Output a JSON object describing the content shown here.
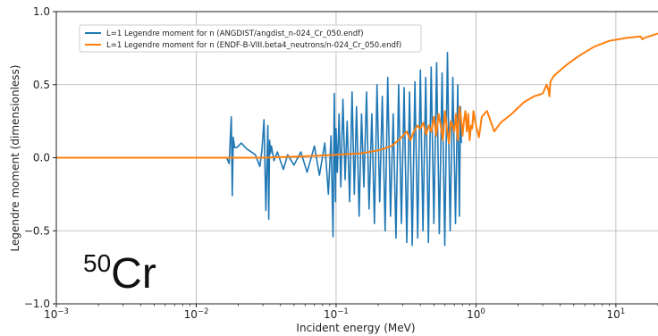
{
  "chart_data": {
    "type": "line",
    "xlabel": "Incident energy (MeV)",
    "ylabel": "Legendre moment (dimensionless)",
    "xscale": "log",
    "xlim": [
      0.001,
      20
    ],
    "ylim": [
      -1.0,
      1.0
    ],
    "grid": true,
    "legend_placement": "upper-left",
    "x_ticks": [
      {
        "value": 0.001,
        "base": "10",
        "exp": "−3"
      },
      {
        "value": 0.01,
        "base": "10",
        "exp": "−2"
      },
      {
        "value": 0.1,
        "base": "10",
        "exp": "−1"
      },
      {
        "value": 1,
        "base": "10",
        "exp": "0"
      },
      {
        "value": 10,
        "base": "10",
        "exp": "1"
      }
    ],
    "y_ticks": [
      {
        "value": 1.0,
        "label": "1.0"
      },
      {
        "value": 0.5,
        "label": "0.5"
      },
      {
        "value": 0.0,
        "label": "0.0"
      },
      {
        "value": -0.5,
        "label": "−0.5"
      },
      {
        "value": -1.0,
        "label": "−1.0"
      }
    ],
    "annotation": {
      "mass": "50",
      "symbol": "Cr"
    },
    "series": [
      {
        "name": "L=1 Legendre moment for n (ANGDIST/angdist_n-024_Cr_050.endf)",
        "color": "#1f77b4",
        "x": [
          0.001,
          0.005,
          0.012,
          0.0165,
          0.0172,
          0.0178,
          0.0181,
          0.0184,
          0.0188,
          0.0195,
          0.021,
          0.023,
          0.0265,
          0.0285,
          0.0295,
          0.0305,
          0.0315,
          0.0325,
          0.033,
          0.0335,
          0.034,
          0.0345,
          0.036,
          0.038,
          0.042,
          0.045,
          0.05,
          0.056,
          0.062,
          0.07,
          0.076,
          0.083,
          0.088,
          0.092,
          0.095,
          0.097,
          0.099,
          0.1,
          0.102,
          0.105,
          0.108,
          0.112,
          0.116,
          0.12,
          0.125,
          0.13,
          0.135,
          0.14,
          0.146,
          0.152,
          0.158,
          0.165,
          0.172,
          0.18,
          0.188,
          0.196,
          0.205,
          0.214,
          0.224,
          0.234,
          0.245,
          0.256,
          0.268,
          0.28,
          0.293,
          0.306,
          0.32,
          0.335,
          0.35,
          0.366,
          0.383,
          0.4,
          0.418,
          0.437,
          0.457,
          0.478,
          0.5,
          0.523,
          0.547,
          0.572,
          0.598,
          0.625,
          0.653,
          0.683,
          0.714,
          0.74,
          0.76,
          0.775,
          0.785
        ],
        "y": [
          0.0,
          0.0,
          0.0,
          0.0,
          -0.04,
          0.28,
          -0.26,
          0.14,
          0.07,
          0.07,
          0.1,
          0.06,
          0.02,
          -0.06,
          0.05,
          0.26,
          -0.36,
          0.22,
          -0.42,
          0.12,
          0.03,
          0.08,
          -0.02,
          0.04,
          -0.08,
          0.02,
          -0.05,
          0.04,
          -0.1,
          0.08,
          -0.12,
          0.1,
          -0.25,
          0.15,
          -0.54,
          0.44,
          -0.3,
          0.2,
          -0.1,
          0.3,
          -0.2,
          0.4,
          -0.15,
          0.25,
          -0.3,
          0.45,
          -0.25,
          0.35,
          -0.4,
          0.3,
          -0.2,
          0.45,
          -0.35,
          0.3,
          -0.45,
          0.5,
          -0.3,
          0.42,
          -0.5,
          0.55,
          -0.4,
          0.3,
          -0.55,
          0.5,
          -0.45,
          0.48,
          -0.58,
          0.45,
          -0.6,
          0.52,
          -0.55,
          0.6,
          -0.5,
          0.55,
          -0.58,
          0.62,
          -0.45,
          0.65,
          -0.52,
          0.58,
          -0.6,
          0.72,
          -0.5,
          0.55,
          -0.45,
          0.5,
          -0.4,
          0.35,
          0.1
        ]
      },
      {
        "name": "L=1 Legendre moment for n (ENDF-B-VIII.beta4_neutrons/n-024_Cr_050.endf)",
        "color": "#ff7f0e",
        "x": [
          0.001,
          0.01,
          0.03,
          0.06,
          0.1,
          0.15,
          0.2,
          0.25,
          0.28,
          0.3,
          0.32,
          0.34,
          0.36,
          0.38,
          0.4,
          0.42,
          0.44,
          0.46,
          0.48,
          0.5,
          0.52,
          0.54,
          0.56,
          0.58,
          0.6,
          0.62,
          0.64,
          0.66,
          0.68,
          0.7,
          0.72,
          0.74,
          0.76,
          0.78,
          0.8,
          0.82,
          0.84,
          0.86,
          0.88,
          0.9,
          0.92,
          0.94,
          0.96,
          1.0,
          1.05,
          1.1,
          1.2,
          1.35,
          1.5,
          1.8,
          2.2,
          2.6,
          3.0,
          3.2,
          3.3,
          3.35,
          3.4,
          3.6,
          4.5,
          5.5,
          7.0,
          9.0,
          12.0,
          15.0,
          15.5,
          16.0,
          20.0
        ],
        "y": [
          0.0,
          0.0,
          0.0,
          0.01,
          0.02,
          0.03,
          0.05,
          0.08,
          0.12,
          0.15,
          0.18,
          0.12,
          0.18,
          0.22,
          0.2,
          0.24,
          0.16,
          0.22,
          0.18,
          0.28,
          0.15,
          0.3,
          0.22,
          0.12,
          0.32,
          0.2,
          0.1,
          0.25,
          0.22,
          0.18,
          0.3,
          0.12,
          0.35,
          0.28,
          0.15,
          0.25,
          0.32,
          0.18,
          0.3,
          0.12,
          0.22,
          0.2,
          0.32,
          0.22,
          0.14,
          0.28,
          0.32,
          0.18,
          0.24,
          0.3,
          0.38,
          0.42,
          0.44,
          0.5,
          0.46,
          0.42,
          0.52,
          0.56,
          0.64,
          0.7,
          0.76,
          0.8,
          0.82,
          0.83,
          0.81,
          0.82,
          0.85
        ]
      }
    ]
  }
}
